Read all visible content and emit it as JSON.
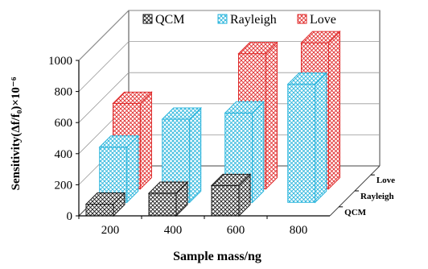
{
  "chart_data": {
    "type": "bar",
    "subtype": "3d-clustered-column",
    "categories": [
      "200",
      "400",
      "600",
      "800"
    ],
    "series": [
      {
        "name": "QCM",
        "values": [
          75,
          145,
          195,
          0
        ],
        "color": "#1a1a1a"
      },
      {
        "name": "Rayleigh",
        "values": [
          355,
          535,
          575,
          760
        ],
        "color": "#28b4dc"
      },
      {
        "name": "Love",
        "values": [
          550,
          0,
          870,
          940
        ],
        "color": "#e02b2b"
      }
    ],
    "depth_labels": [
      "QCM",
      "Rayleigh",
      "Love"
    ],
    "ylabel": "Sensitivity(Δf/f₀)×10⁻⁶",
    "xlabel": "Sample mass/ng",
    "ylim": [
      0,
      1000
    ],
    "yticks": [
      "0",
      "200",
      "400",
      "600",
      "800",
      "1000"
    ],
    "legend": {
      "position": "top",
      "items": [
        "QCM",
        "Rayleigh",
        "Love"
      ]
    },
    "grid": true
  }
}
